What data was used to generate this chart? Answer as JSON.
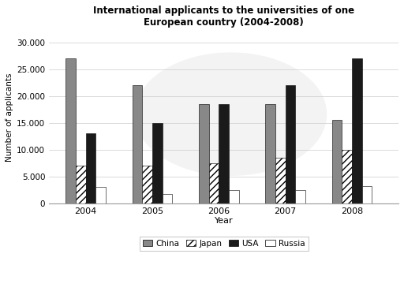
{
  "title": "International applicants to the universities of one\nEuropean country (2004-2008)",
  "xlabel": "Year",
  "ylabel": "Number of applicants",
  "years": [
    2004,
    2005,
    2006,
    2007,
    2008
  ],
  "year_labels": [
    "2004",
    "2005",
    "2006",
    "2007",
    "2008"
  ],
  "China": [
    27000,
    22000,
    18500,
    18500,
    15500
  ],
  "Japan": [
    7000,
    7000,
    7500,
    8500,
    10000
  ],
  "USA": [
    13000,
    15000,
    18500,
    22000,
    27000
  ],
  "Russia": [
    3000,
    1800,
    2500,
    2500,
    3200
  ],
  "yticks": [
    0,
    5000,
    10000,
    15000,
    20000,
    25000,
    30000
  ],
  "ytick_labels": [
    "0",
    "5.000",
    "10.000",
    "15.000",
    "20.000",
    "25.000",
    "30.000"
  ],
  "china_color": "#888888",
  "usa_color": "#1a1a1a",
  "background_color": "#ffffff"
}
